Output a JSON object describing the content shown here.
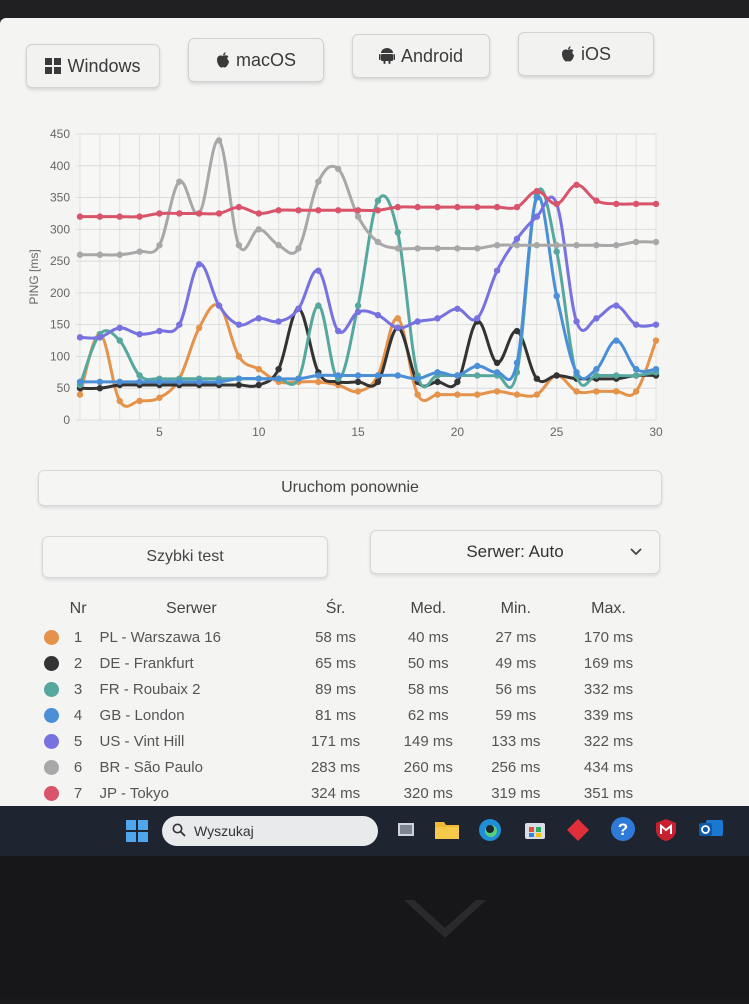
{
  "os_tabs": [
    {
      "label": "Windows",
      "icon": "windows-icon"
    },
    {
      "label": "macOS",
      "icon": "apple-icon"
    },
    {
      "label": "Android",
      "icon": "android-icon"
    },
    {
      "label": "iOS",
      "icon": "apple-icon"
    }
  ],
  "chart_data": {
    "type": "line",
    "title": "",
    "xlabel": "",
    "ylabel": "PING [ms]",
    "xlim": [
      1,
      30
    ],
    "ylim": [
      0,
      450
    ],
    "x_ticks": [
      5,
      10,
      15,
      20,
      25,
      30
    ],
    "y_ticks": [
      0,
      50,
      100,
      150,
      200,
      250,
      300,
      350,
      400,
      450
    ],
    "grid": true,
    "x": [
      1,
      2,
      3,
      4,
      5,
      6,
      7,
      8,
      9,
      10,
      11,
      12,
      13,
      14,
      15,
      16,
      17,
      18,
      19,
      20,
      21,
      22,
      23,
      24,
      25,
      26,
      27,
      28,
      29,
      30
    ],
    "series": [
      {
        "color": "#e5924a",
        "values": [
          40,
          135,
          30,
          30,
          35,
          65,
          145,
          180,
          100,
          80,
          60,
          60,
          60,
          55,
          45,
          70,
          160,
          40,
          40,
          40,
          40,
          45,
          40,
          40,
          70,
          45,
          45,
          45,
          45,
          125
        ]
      },
      {
        "color": "#333333",
        "values": [
          50,
          50,
          55,
          55,
          55,
          55,
          55,
          55,
          55,
          55,
          80,
          175,
          75,
          60,
          60,
          60,
          145,
          60,
          60,
          60,
          155,
          90,
          140,
          65,
          70,
          65,
          65,
          65,
          70,
          70
        ]
      },
      {
        "color": "#56a89e",
        "values": [
          55,
          135,
          125,
          70,
          65,
          65,
          65,
          65,
          65,
          65,
          65,
          65,
          180,
          65,
          180,
          345,
          295,
          70,
          70,
          70,
          70,
          70,
          75,
          355,
          265,
          70,
          70,
          70,
          70,
          75
        ]
      },
      {
        "color": "#4b8fd6",
        "values": [
          60,
          60,
          60,
          60,
          60,
          60,
          60,
          60,
          65,
          65,
          65,
          65,
          70,
          70,
          70,
          70,
          70,
          65,
          75,
          70,
          85,
          75,
          90,
          350,
          195,
          75,
          80,
          125,
          80,
          80
        ]
      },
      {
        "color": "#7772e0",
        "values": [
          130,
          130,
          145,
          135,
          140,
          150,
          245,
          180,
          150,
          160,
          155,
          175,
          235,
          140,
          170,
          165,
          145,
          155,
          160,
          175,
          160,
          235,
          285,
          320,
          340,
          155,
          160,
          180,
          150,
          150
        ]
      },
      {
        "color": "#a8a8a8",
        "values": [
          260,
          260,
          260,
          265,
          275,
          375,
          325,
          440,
          275,
          300,
          275,
          270,
          375,
          395,
          320,
          280,
          270,
          270,
          270,
          270,
          270,
          275,
          275,
          275,
          275,
          275,
          275,
          275,
          280,
          280
        ]
      },
      {
        "color": "#d9546a",
        "values": [
          320,
          320,
          320,
          320,
          325,
          325,
          325,
          325,
          335,
          325,
          330,
          330,
          330,
          330,
          330,
          330,
          335,
          335,
          335,
          335,
          335,
          335,
          335,
          360,
          340,
          370,
          345,
          340,
          340,
          340
        ]
      }
    ]
  },
  "restart_label": "Uruchom ponownie",
  "quick_test_label": "Szybki test",
  "server_select_label": "Serwer: Auto",
  "table": {
    "headers": [
      "Nr",
      "Serwer",
      "Śr.",
      "Med.",
      "Min.",
      "Max."
    ],
    "rows": [
      {
        "nr": "1",
        "name": "PL - Warszawa 16",
        "avg": "58 ms",
        "med": "40 ms",
        "min": "27 ms",
        "max": "170 ms",
        "color": "#e5924a"
      },
      {
        "nr": "2",
        "name": "DE - Frankfurt",
        "avg": "65 ms",
        "med": "50 ms",
        "min": "49 ms",
        "max": "169 ms",
        "color": "#333333"
      },
      {
        "nr": "3",
        "name": "FR - Roubaix 2",
        "avg": "89 ms",
        "med": "58 ms",
        "min": "56 ms",
        "max": "332 ms",
        "color": "#56a89e"
      },
      {
        "nr": "4",
        "name": "GB - London",
        "avg": "81 ms",
        "med": "62 ms",
        "min": "59 ms",
        "max": "339 ms",
        "color": "#4b8fd6"
      },
      {
        "nr": "5",
        "name": "US - Vint Hill",
        "avg": "171 ms",
        "med": "149 ms",
        "min": "133 ms",
        "max": "322 ms",
        "color": "#7772e0"
      },
      {
        "nr": "6",
        "name": "BR - São Paulo",
        "avg": "283 ms",
        "med": "260 ms",
        "min": "256 ms",
        "max": "434 ms",
        "color": "#a8a8a8"
      },
      {
        "nr": "7",
        "name": "JP - Tokyo",
        "avg": "324 ms",
        "med": "320 ms",
        "min": "319 ms",
        "max": "351 ms",
        "color": "#d9546a"
      }
    ]
  },
  "taskbar": {
    "search_placeholder": "Wyszukaj"
  }
}
